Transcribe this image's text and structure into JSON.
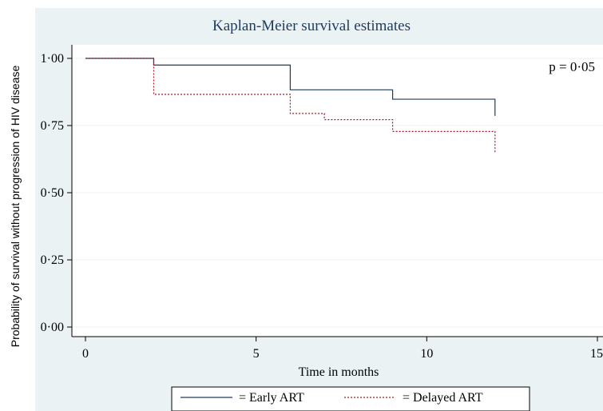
{
  "chart_data": {
    "type": "line",
    "title": "Kaplan-Meier survival estimates",
    "xlabel": "Time in months",
    "ylabel": "Probability of survival without progression of HIV disease",
    "xlim": [
      0,
      15
    ],
    "ylim": [
      0,
      1
    ],
    "x_ticks": [
      0,
      5,
      10,
      15
    ],
    "x_tick_labels": [
      "0",
      "5",
      "10",
      "15"
    ],
    "y_ticks": [
      0,
      0.25,
      0.5,
      0.75,
      1
    ],
    "y_tick_labels": [
      "0·00",
      "0·25",
      "0·50",
      "0·75",
      "1·00"
    ],
    "grid": "horizontal",
    "legend_position": "bottom",
    "annotation": "p = 0·05",
    "series": [
      {
        "name": "= Early ART",
        "color": "#1f3a5f",
        "dash": "solid",
        "x": [
          0,
          2,
          6,
          9,
          12
        ],
        "y": [
          1.0,
          0.975,
          0.883,
          0.848,
          0.786
        ],
        "end_x": 12
      },
      {
        "name": "= Delayed ART",
        "color": "#a01c2a",
        "dash": "dotted",
        "x": [
          0,
          2,
          6,
          7,
          9,
          12
        ],
        "y": [
          1.0,
          0.866,
          0.795,
          0.772,
          0.728,
          0.645
        ],
        "end_x": 12
      }
    ]
  }
}
